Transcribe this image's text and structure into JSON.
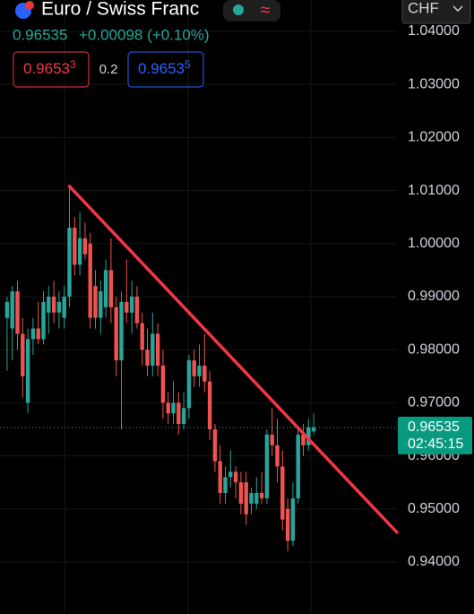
{
  "header": {
    "symbol": "Euro / Swiss Franc",
    "price": "0.96535",
    "change": "+0.00098 (+0.10%)",
    "bid": {
      "main": "0.9653",
      "pip": "3"
    },
    "spread": "0.2",
    "ask": {
      "main": "0.9653",
      "pip": "5"
    },
    "currency": "CHF"
  },
  "chart_data": {
    "type": "candlestick",
    "categories": [
      null,
      null,
      null,
      null,
      null,
      null,
      null,
      null,
      null,
      null,
      null,
      null,
      null,
      null,
      null,
      null,
      null,
      null,
      null,
      null,
      null,
      null,
      null,
      null,
      null,
      null,
      null,
      null,
      null,
      null,
      null,
      null,
      null,
      null,
      null,
      null,
      null,
      null,
      null,
      null,
      null,
      null,
      null,
      null,
      null,
      null,
      null,
      null,
      null,
      null,
      null,
      null,
      null,
      null,
      null,
      null,
      null,
      null,
      null,
      null
    ],
    "open": [
      0.986,
      0.984,
      0.991,
      0.983,
      0.97,
      0.982,
      0.984,
      0.982,
      0.987,
      0.99,
      0.987,
      0.986,
      0.99,
      1.003,
      0.996,
      1.001,
      1.0,
      0.992,
      0.986,
      0.988,
      0.995,
      0.988,
      0.978,
      0.989,
      0.987,
      0.99,
      0.985,
      0.98,
      0.977,
      0.983,
      0.977,
      0.97,
      0.968,
      0.97,
      0.966,
      0.969,
      0.978,
      0.975,
      0.977,
      0.974,
      0.965,
      0.959,
      0.953,
      0.956,
      0.957,
      0.955,
      0.955,
      0.951,
      0.951,
      0.953,
      0.952,
      0.964,
      0.962,
      0.958,
      0.95,
      0.944,
      0.952,
      0.964,
      0.962,
      0.9646
    ],
    "high": [
      0.99,
      0.992,
      0.993,
      0.986,
      0.984,
      0.986,
      0.989,
      0.991,
      0.992,
      0.993,
      0.991,
      0.992,
      1.0108,
      1.005,
      1.006,
      1.004,
      1.002,
      0.995,
      0.993,
      0.997,
      1.001,
      0.99,
      0.991,
      0.997,
      0.993,
      0.992,
      0.987,
      0.984,
      0.987,
      0.985,
      0.98,
      0.972,
      0.974,
      0.972,
      0.972,
      0.979,
      0.98,
      0.981,
      0.983,
      0.976,
      0.966,
      0.962,
      0.958,
      0.961,
      0.958,
      0.957,
      0.957,
      0.954,
      0.956,
      0.957,
      0.965,
      0.969,
      0.967,
      0.961,
      0.952,
      0.955,
      0.965,
      0.966,
      0.967,
      0.968
    ],
    "low": [
      0.976,
      0.978,
      0.98,
      0.971,
      0.968,
      0.979,
      0.981,
      0.981,
      0.983,
      0.985,
      0.984,
      0.984,
      0.988,
      0.994,
      0.994,
      0.997,
      0.984,
      0.984,
      0.983,
      0.986,
      0.985,
      0.975,
      0.965,
      0.985,
      0.983,
      0.984,
      0.977,
      0.975,
      0.975,
      0.975,
      0.967,
      0.966,
      0.966,
      0.964,
      0.965,
      0.967,
      0.973,
      0.973,
      0.972,
      0.963,
      0.957,
      0.951,
      0.951,
      0.954,
      0.952,
      0.949,
      0.947,
      0.949,
      0.95,
      0.951,
      0.951,
      0.96,
      0.955,
      0.946,
      0.942,
      0.943,
      0.951,
      0.96,
      0.961,
      0.964
    ],
    "close": [
      0.989,
      0.991,
      0.983,
      0.975,
      0.982,
      0.984,
      0.982,
      0.989,
      0.99,
      0.987,
      0.989,
      0.99,
      1.003,
      0.996,
      1.001,
      0.998,
      0.986,
      0.986,
      0.991,
      0.995,
      0.988,
      0.978,
      0.989,
      0.987,
      0.99,
      0.985,
      0.98,
      0.977,
      0.983,
      0.977,
      0.97,
      0.968,
      0.97,
      0.966,
      0.969,
      0.978,
      0.975,
      0.977,
      0.974,
      0.965,
      0.959,
      0.953,
      0.956,
      0.957,
      0.955,
      0.951,
      0.949,
      0.953,
      0.953,
      0.952,
      0.964,
      0.962,
      0.958,
      0.948,
      0.944,
      0.952,
      0.964,
      0.962,
      0.9654,
      0.96535
    ],
    "up_color": "#26a69a",
    "down_color": "#ef5350",
    "ylim": [
      0.9302,
      1.0459
    ],
    "yticks": [
      {
        "value": 1.04,
        "label": "1.04000"
      },
      {
        "value": 1.03,
        "label": "1.03000"
      },
      {
        "value": 1.02,
        "label": "1.02000"
      },
      {
        "value": 1.01,
        "label": "1.01000"
      },
      {
        "value": 1.0,
        "label": "1.00000"
      },
      {
        "value": 0.99,
        "label": "0.99000"
      },
      {
        "value": 0.98,
        "label": "0.98000"
      },
      {
        "value": 0.97,
        "label": "0.97000"
      },
      {
        "value": 0.96,
        "label": "0.96000"
      },
      {
        "value": 0.95,
        "label": "0.95000"
      },
      {
        "value": 0.94,
        "label": "0.94000"
      }
    ],
    "grid": true,
    "countdown": "02:45:15",
    "trendline": {
      "color": "#f23645",
      "start": [
        12,
        1.0108
      ],
      "end": [
        75,
        0.9456
      ]
    }
  }
}
